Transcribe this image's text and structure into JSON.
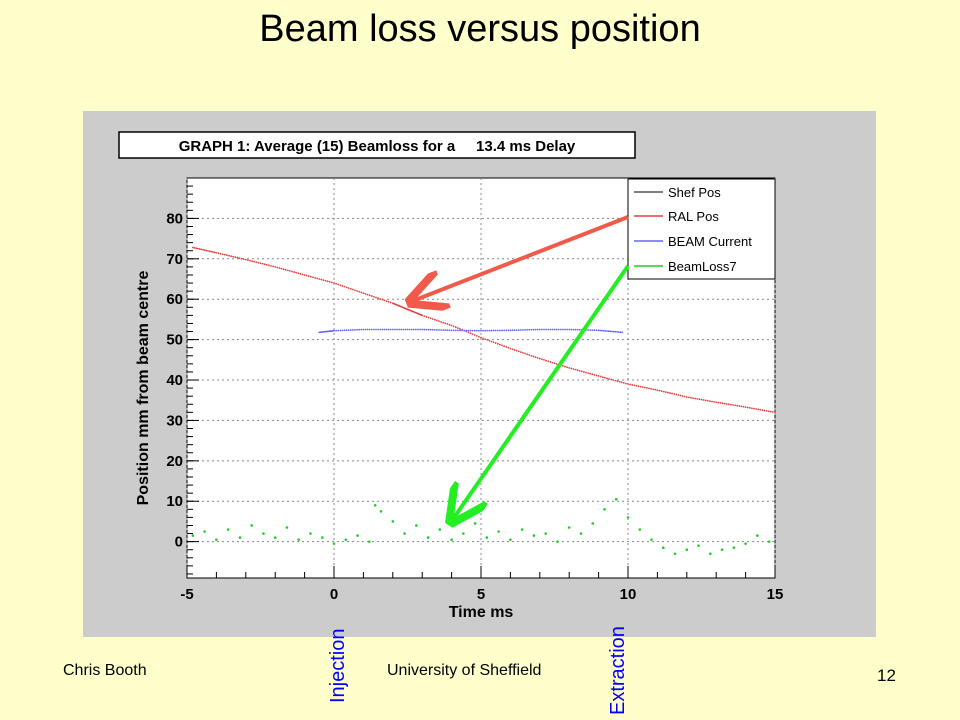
{
  "slide": {
    "title": "Beam loss versus position",
    "author": "Chris Booth",
    "institution": "University of Sheffield",
    "page_number": "12",
    "annotation_injection": "Injection",
    "annotation_extraction": "Extraction"
  },
  "chart_data": {
    "type": "scatter",
    "title": "GRAPH 1: Average (15) Beamloss for a     13.4 ms Delay",
    "xlabel": "Time ms",
    "ylabel": "Position mm from beam centre",
    "xlim": [
      -5,
      15
    ],
    "ylim": [
      -9,
      90
    ],
    "xticks": [
      -5,
      0,
      5,
      10,
      15
    ],
    "yticks": [
      0,
      10,
      20,
      30,
      40,
      50,
      60,
      70,
      80
    ],
    "grid": true,
    "legend_position": "top-right",
    "colors": {
      "plot_bg": "#cccccc",
      "frame_bg": "#ffffff",
      "shef": "#555555",
      "ral": "#e04040",
      "beam": "#6666ee",
      "loss": "#22cc22",
      "arrow_red": "#f05a4a",
      "arrow_green": "#22ee22"
    },
    "series": [
      {
        "name": "Shef Pos",
        "x": [],
        "y": []
      },
      {
        "name": "RAL Pos",
        "x": [
          -4.8,
          -4.0,
          -3.0,
          -2.0,
          -1.0,
          0.0,
          1.0,
          2.0,
          2.5,
          3.0,
          4.0,
          5.0,
          6.0,
          7.0,
          8.0,
          9.0,
          10.0,
          11.0,
          12.0,
          13.0,
          14.0,
          15.0
        ],
        "y": [
          72.8,
          71.5,
          69.8,
          68.0,
          66.0,
          64.0,
          61.5,
          59.0,
          57.5,
          56.0,
          53.5,
          50.5,
          47.8,
          45.3,
          43.0,
          41.0,
          39.0,
          37.5,
          35.8,
          34.5,
          33.3,
          32.0
        ]
      },
      {
        "name": "BEAM Current",
        "x": [
          -0.5,
          0.0,
          1.0,
          2.0,
          3.0,
          4.0,
          5.0,
          6.0,
          7.0,
          8.0,
          9.0,
          9.8
        ],
        "y": [
          51.8,
          52.2,
          52.5,
          52.5,
          52.5,
          52.3,
          52.2,
          52.3,
          52.5,
          52.5,
          52.3,
          51.8
        ]
      },
      {
        "name": "BeamLoss7",
        "x": [
          -4.8,
          -4.4,
          -4.0,
          -3.6,
          -3.2,
          -2.8,
          -2.4,
          -2.0,
          -1.6,
          -1.2,
          -0.8,
          -0.4,
          0.0,
          0.4,
          0.8,
          1.2,
          1.4,
          1.6,
          2.0,
          2.4,
          2.8,
          3.2,
          3.6,
          4.0,
          4.4,
          4.8,
          5.2,
          5.6,
          6.0,
          6.4,
          6.8,
          7.2,
          7.6,
          8.0,
          8.4,
          8.8,
          9.2,
          9.6,
          10.0,
          10.4,
          10.8,
          11.2,
          11.6,
          12.0,
          12.4,
          12.8,
          13.2,
          13.6,
          14.0,
          14.4,
          14.8
        ],
        "y": [
          1.5,
          2.5,
          0.5,
          3.0,
          1.0,
          4.0,
          2.0,
          1.0,
          3.5,
          0.5,
          2.0,
          1.0,
          -0.5,
          0.5,
          1.5,
          0.0,
          9.0,
          7.5,
          5.0,
          2.0,
          4.0,
          1.0,
          3.0,
          0.5,
          2.0,
          4.5,
          1.0,
          2.5,
          0.5,
          3.0,
          1.5,
          2.0,
          0.0,
          3.5,
          2.0,
          4.5,
          8.0,
          10.5,
          6.0,
          3.0,
          0.5,
          -1.5,
          -3.0,
          -2.0,
          -1.0,
          -3.0,
          -2.0,
          -1.5,
          -0.5,
          1.5,
          0.0
        ]
      }
    ]
  }
}
